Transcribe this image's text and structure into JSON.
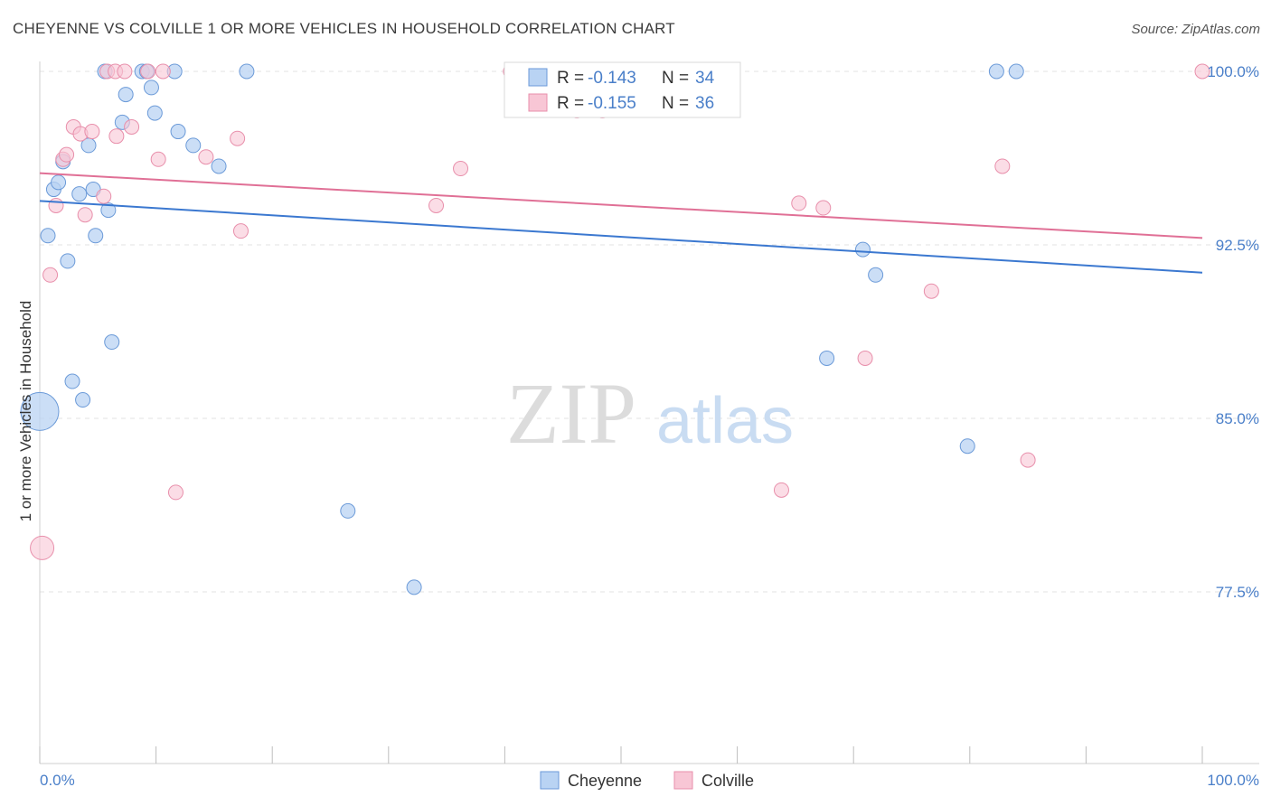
{
  "title": "CHEYENNE VS COLVILLE 1 OR MORE VEHICLES IN HOUSEHOLD CORRELATION CHART",
  "source": "Source: ZipAtlas.com",
  "watermark": {
    "zip": "ZIP",
    "atlas": "atlas"
  },
  "colors": {
    "cheyenne_fill": "#b9d3f3",
    "cheyenne_stroke": "#6b9ad8",
    "cheyenne_line": "#3b78d0",
    "colville_fill": "#f8c6d5",
    "colville_stroke": "#e88fab",
    "colville_line": "#e07096",
    "label_blue": "#4a7fc9"
  },
  "legend": {
    "rows": [
      {
        "r_label": "R = ",
        "r_value": "-0.143",
        "n_label": "N = ",
        "n_value": "34",
        "series": "cheyenne"
      },
      {
        "r_label": "R = ",
        "r_value": "-0.155",
        "n_label": "N = ",
        "n_value": "36",
        "series": "colville"
      }
    ]
  },
  "chart_data": {
    "type": "scatter",
    "title": "CHEYENNE VS COLVILLE 1 OR MORE VEHICLES IN HOUSEHOLD CORRELATION CHART",
    "xlabel": "",
    "ylabel": "1 or more Vehicles in Household",
    "xlim": [
      0,
      100
    ],
    "ylim": [
      70,
      100.8
    ],
    "x_tick_labels": [
      "0.0%",
      "100.0%"
    ],
    "y_ticks": [
      100.0,
      92.5,
      85.0,
      77.5
    ],
    "y_tick_labels": [
      "100.0%",
      "92.5%",
      "85.0%",
      "77.5%"
    ],
    "grid": true,
    "legend_position": "top-center",
    "series": [
      {
        "name": "Cheyenne",
        "trend": {
          "x": [
            0,
            100
          ],
          "y": [
            94.4,
            91.3
          ]
        },
        "points": [
          {
            "x": 0.0,
            "y": 85.3,
            "s": 3
          },
          {
            "x": 0.7,
            "y": 92.9,
            "s": 1
          },
          {
            "x": 1.2,
            "y": 94.9,
            "s": 1
          },
          {
            "x": 1.6,
            "y": 95.2,
            "s": 1
          },
          {
            "x": 2.0,
            "y": 96.1,
            "s": 1
          },
          {
            "x": 2.4,
            "y": 91.8,
            "s": 1
          },
          {
            "x": 2.8,
            "y": 86.6,
            "s": 1
          },
          {
            "x": 3.4,
            "y": 94.7,
            "s": 1
          },
          {
            "x": 3.7,
            "y": 85.8,
            "s": 1
          },
          {
            "x": 4.2,
            "y": 96.8,
            "s": 1
          },
          {
            "x": 4.6,
            "y": 94.9,
            "s": 1
          },
          {
            "x": 4.8,
            "y": 92.9,
            "s": 1
          },
          {
            "x": 5.6,
            "y": 100.0,
            "s": 1
          },
          {
            "x": 5.9,
            "y": 94.0,
            "s": 1
          },
          {
            "x": 6.2,
            "y": 88.3,
            "s": 1
          },
          {
            "x": 7.1,
            "y": 97.8,
            "s": 1
          },
          {
            "x": 7.4,
            "y": 99.0,
            "s": 1
          },
          {
            "x": 8.8,
            "y": 100.0,
            "s": 1
          },
          {
            "x": 9.2,
            "y": 100.0,
            "s": 1
          },
          {
            "x": 9.6,
            "y": 99.3,
            "s": 1
          },
          {
            "x": 9.9,
            "y": 98.2,
            "s": 1
          },
          {
            "x": 11.6,
            "y": 100.0,
            "s": 1
          },
          {
            "x": 11.9,
            "y": 97.4,
            "s": 1
          },
          {
            "x": 13.2,
            "y": 96.8,
            "s": 1
          },
          {
            "x": 15.4,
            "y": 95.9,
            "s": 1
          },
          {
            "x": 17.8,
            "y": 100.0,
            "s": 1
          },
          {
            "x": 26.5,
            "y": 81.0,
            "s": 1
          },
          {
            "x": 32.2,
            "y": 77.7,
            "s": 1
          },
          {
            "x": 67.7,
            "y": 87.6,
            "s": 1
          },
          {
            "x": 70.8,
            "y": 92.3,
            "s": 1
          },
          {
            "x": 71.9,
            "y": 91.2,
            "s": 1
          },
          {
            "x": 79.8,
            "y": 83.8,
            "s": 1
          },
          {
            "x": 82.3,
            "y": 100.0,
            "s": 1
          },
          {
            "x": 84.0,
            "y": 100.0,
            "s": 1
          }
        ]
      },
      {
        "name": "Colville",
        "trend": {
          "x": [
            0,
            100
          ],
          "y": [
            95.6,
            92.8
          ]
        },
        "points": [
          {
            "x": 0.2,
            "y": 79.4,
            "s": 2
          },
          {
            "x": 0.9,
            "y": 91.2,
            "s": 1
          },
          {
            "x": 1.4,
            "y": 94.2,
            "s": 1
          },
          {
            "x": 2.0,
            "y": 96.2,
            "s": 1
          },
          {
            "x": 2.3,
            "y": 96.4,
            "s": 1
          },
          {
            "x": 2.9,
            "y": 97.6,
            "s": 1
          },
          {
            "x": 3.5,
            "y": 97.3,
            "s": 1
          },
          {
            "x": 3.9,
            "y": 93.8,
            "s": 1
          },
          {
            "x": 4.5,
            "y": 97.4,
            "s": 1
          },
          {
            "x": 5.5,
            "y": 94.6,
            "s": 1
          },
          {
            "x": 5.8,
            "y": 100.0,
            "s": 1
          },
          {
            "x": 6.5,
            "y": 100.0,
            "s": 1
          },
          {
            "x": 6.6,
            "y": 97.2,
            "s": 1
          },
          {
            "x": 7.3,
            "y": 100.0,
            "s": 1
          },
          {
            "x": 7.9,
            "y": 97.6,
            "s": 1
          },
          {
            "x": 9.3,
            "y": 100.0,
            "s": 1
          },
          {
            "x": 10.2,
            "y": 96.2,
            "s": 1
          },
          {
            "x": 10.6,
            "y": 100.0,
            "s": 1
          },
          {
            "x": 11.7,
            "y": 81.8,
            "s": 1
          },
          {
            "x": 14.3,
            "y": 96.3,
            "s": 1
          },
          {
            "x": 17.0,
            "y": 97.1,
            "s": 1
          },
          {
            "x": 17.3,
            "y": 93.1,
            "s": 1
          },
          {
            "x": 34.1,
            "y": 94.2,
            "s": 1
          },
          {
            "x": 36.2,
            "y": 95.8,
            "s": 1
          },
          {
            "x": 40.5,
            "y": 100.0,
            "s": 1
          },
          {
            "x": 46.2,
            "y": 98.3,
            "s": 1
          },
          {
            "x": 48.4,
            "y": 98.3,
            "s": 1
          },
          {
            "x": 53.2,
            "y": 100.0,
            "s": 1
          },
          {
            "x": 63.8,
            "y": 81.9,
            "s": 1
          },
          {
            "x": 65.3,
            "y": 94.3,
            "s": 1
          },
          {
            "x": 67.4,
            "y": 94.1,
            "s": 1
          },
          {
            "x": 71.0,
            "y": 87.6,
            "s": 1
          },
          {
            "x": 76.7,
            "y": 90.5,
            "s": 1
          },
          {
            "x": 82.8,
            "y": 95.9,
            "s": 1
          },
          {
            "x": 85.0,
            "y": 83.2,
            "s": 1
          },
          {
            "x": 100.0,
            "y": 100.0,
            "s": 1
          }
        ]
      }
    ]
  }
}
